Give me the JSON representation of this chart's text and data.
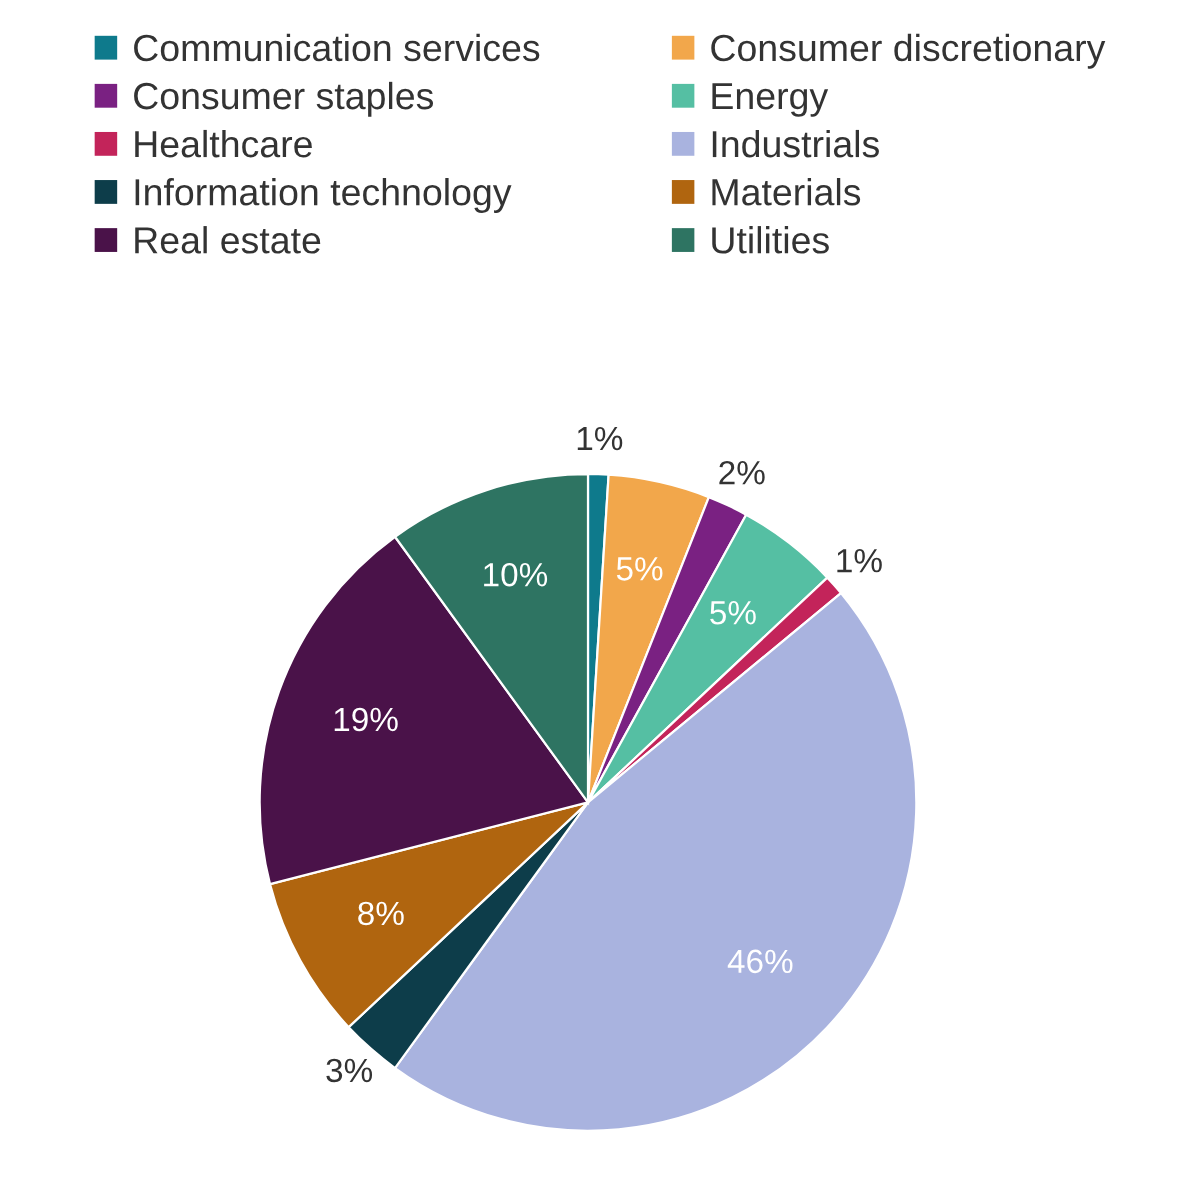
{
  "chart_data": {
    "type": "pie",
    "categories": [
      "Communication services",
      "Consumer discretionary",
      "Consumer staples",
      "Energy",
      "Healthcare",
      "Industrials",
      "Information technology",
      "Materials",
      "Real estate",
      "Utilities"
    ],
    "values": [
      1,
      5,
      2,
      5,
      1,
      46,
      3,
      8,
      19,
      10
    ],
    "value_labels": [
      "1%",
      "5%",
      "2%",
      "5%",
      "1%",
      "46%",
      "3%",
      "8%",
      "19%",
      "10%"
    ],
    "colors": [
      "#0e7a8c",
      "#f2a74b",
      "#7a2182",
      "#55bfa3",
      "#c3245a",
      "#a9b3df",
      "#0d3d4a",
      "#b0650f",
      "#4a1249",
      "#2e7462"
    ],
    "legend": "top"
  }
}
